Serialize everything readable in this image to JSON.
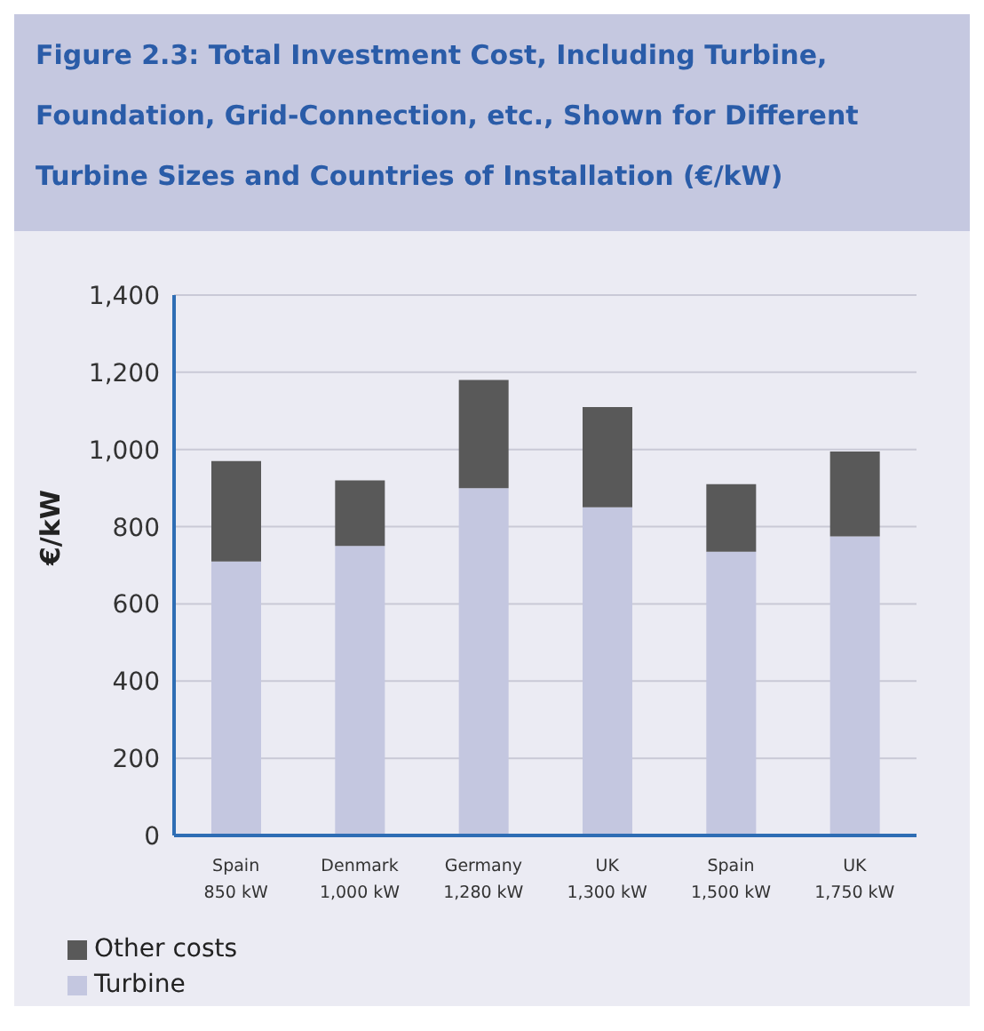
{
  "chart_data": {
    "type": "bar",
    "title": "Figure 2.3: Total Investment Cost, Including Turbine, Foundation, Grid-Connection, etc., Shown for Different Turbine Sizes and Countries of Installation (€/kW)",
    "ylabel": "€/kW",
    "categories": [
      "Spain\n850 kW",
      "Denmark\n1,000 kW",
      "Germany\n1,280 kW",
      "UK\n1,300 kW",
      "Spain\n1,500 kW",
      "UK\n1,750 kW"
    ],
    "series": [
      {
        "name": "Turbine",
        "color": "#c4c7e0",
        "values": [
          710,
          750,
          900,
          850,
          735,
          775
        ]
      },
      {
        "name": "Other costs",
        "color": "#595959",
        "values": [
          260,
          170,
          280,
          260,
          175,
          220
        ]
      }
    ],
    "stacked": true,
    "ylim": [
      0,
      1400
    ],
    "yticks": [
      0,
      200,
      400,
      600,
      800,
      {
        "value": 1000,
        "label": "1,000"
      },
      {
        "value": 1200,
        "label": "1,200"
      },
      {
        "value": 1400,
        "label": "1,400"
      }
    ],
    "grid": "y",
    "legend": "bottom left"
  }
}
